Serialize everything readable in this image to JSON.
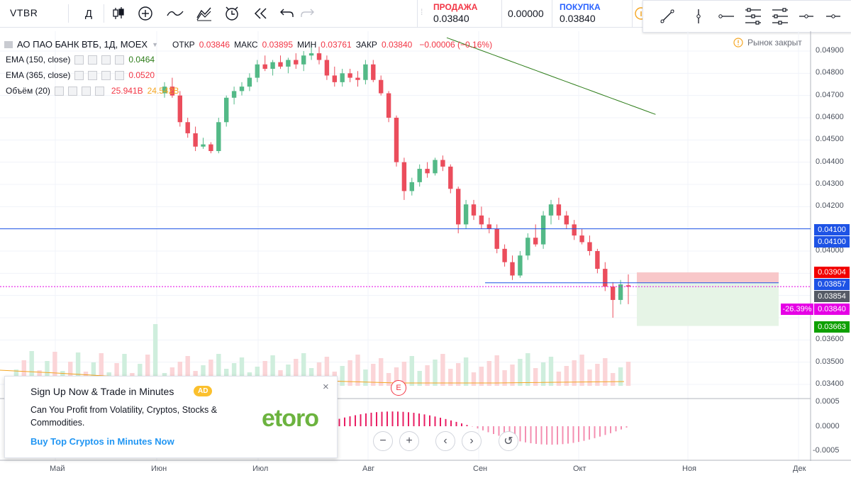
{
  "toolbar": {
    "symbol": "VTBR",
    "interval": "Д",
    "sell_label": "ПРОДАЖА",
    "sell_price": "0.03840",
    "spread": "0.00000",
    "buy_label": "ПОКУПКА",
    "buy_price": "0.03840"
  },
  "legend": {
    "title": "АО ПАО БАНК ВТБ, 1Д, MOEX",
    "open_label": "ОТКР",
    "open_value": "0.03846",
    "high_label": "МАКС",
    "high_value": "0.03895",
    "low_label": "МИН",
    "low_value": "0.03761",
    "close_label": "ЗАКР",
    "close_value": "0.03840",
    "change": "−0.00006 (−0.16%)",
    "ema150_label": "EMA (150, close)",
    "ema150_value": "0.0464",
    "ema365_label": "EMA (365, close)",
    "ema365_value": "0.0520",
    "volume_label": "Объём (20)",
    "volume_value": "25.941B",
    "volume_ma_value": "24.542B"
  },
  "status": {
    "market": "Рынок закрыт"
  },
  "price_axis": [
    "0.04900",
    "0.04800",
    "0.04700",
    "0.04600",
    "0.04500",
    "0.04400",
    "0.04300",
    "0.04200",
    "0.04000",
    "0.03600",
    "0.03500",
    "0.03400"
  ],
  "price_tags": [
    {
      "text": "0.04100",
      "color": "#1e53e5"
    },
    {
      "text": "0.04100",
      "color": "#1e53e5"
    },
    {
      "text": "0.03904",
      "color": "#f20000"
    },
    {
      "text": "0.03857",
      "color": "#1e53e5"
    },
    {
      "text": "0.03854",
      "color": "#555a66"
    },
    {
      "text": "0.03840",
      "color": "#e500e5"
    },
    {
      "text": "0.03663",
      "color": "#0ea000"
    }
  ],
  "pct_tag": "-26.39%",
  "macd_axis": [
    "0.0005",
    "0.0000",
    "-0.0005"
  ],
  "time_axis": [
    "Май",
    "Июн",
    "Июл",
    "Авг",
    "Сен",
    "Окт",
    "Ноя",
    "Дек"
  ],
  "ad": {
    "title": "Sign Up Now & Trade in Minutes",
    "badge": "AD",
    "body": "Can You Profit from Volatility, Cryptos, Stocks & Commodities.",
    "link": "Buy Top Cryptos in Minutes Now",
    "logo": "etoro",
    "close": "×"
  },
  "macd_label": "M",
  "zoom": {
    "minus": "−",
    "plus": "+",
    "left": "‹",
    "right": "›",
    "reset": "↺"
  },
  "colors": {
    "up": "#53b987",
    "down": "#eb4d5c",
    "ema150": "#2e7d1a",
    "line_blue": "#1e53e5",
    "short_red": "#f7b9bb",
    "short_green": "#e6f4e6"
  },
  "chart_data": {
    "type": "candlestick",
    "title": "АО ПАО БАНК ВТБ, 1Д, MOEX",
    "ylim": [
      0.034,
      0.0495
    ],
    "candles": [
      [
        0.0471,
        0.0476,
        0.0469,
        0.0474
      ],
      [
        0.0474,
        0.0478,
        0.0469,
        0.047
      ],
      [
        0.047,
        0.0472,
        0.0456,
        0.0458
      ],
      [
        0.0458,
        0.046,
        0.0451,
        0.0453
      ],
      [
        0.0453,
        0.0456,
        0.0445,
        0.0447
      ],
      [
        0.0447,
        0.0451,
        0.0446,
        0.0448
      ],
      [
        0.0448,
        0.0449,
        0.0444,
        0.0445
      ],
      [
        0.0445,
        0.046,
        0.0444,
        0.0458
      ],
      [
        0.0458,
        0.047,
        0.0456,
        0.0469
      ],
      [
        0.0469,
        0.0474,
        0.0466,
        0.0472
      ],
      [
        0.0472,
        0.0476,
        0.047,
        0.0474
      ],
      [
        0.0474,
        0.048,
        0.0472,
        0.0478
      ],
      [
        0.0478,
        0.0486,
        0.0476,
        0.0484
      ],
      [
        0.0484,
        0.0488,
        0.0481,
        0.0482
      ],
      [
        0.0482,
        0.0486,
        0.0479,
        0.0485
      ],
      [
        0.0485,
        0.0488,
        0.0482,
        0.0483
      ],
      [
        0.0483,
        0.0487,
        0.048,
        0.0486
      ],
      [
        0.0486,
        0.0489,
        0.0482,
        0.0484
      ],
      [
        0.0484,
        0.049,
        0.0481,
        0.0488
      ],
      [
        0.0488,
        0.0493,
        0.0486,
        0.0489
      ],
      [
        0.0489,
        0.0492,
        0.0484,
        0.0486
      ],
      [
        0.0486,
        0.0488,
        0.0477,
        0.0479
      ],
      [
        0.0479,
        0.0483,
        0.0474,
        0.0476
      ],
      [
        0.0476,
        0.0482,
        0.0474,
        0.048
      ],
      [
        0.048,
        0.0482,
        0.0476,
        0.0478
      ],
      [
        0.0478,
        0.0481,
        0.0474,
        0.0477
      ],
      [
        0.0477,
        0.0486,
        0.0475,
        0.0484
      ],
      [
        0.0484,
        0.0486,
        0.0476,
        0.0477
      ],
      [
        0.0477,
        0.0479,
        0.047,
        0.0471
      ],
      [
        0.0471,
        0.0472,
        0.0458,
        0.046
      ],
      [
        0.046,
        0.0461,
        0.0438,
        0.044
      ],
      [
        0.044,
        0.0442,
        0.0423,
        0.0427
      ],
      [
        0.0427,
        0.0433,
        0.0425,
        0.0431
      ],
      [
        0.0431,
        0.0439,
        0.0429,
        0.0437
      ],
      [
        0.0437,
        0.044,
        0.0433,
        0.0435
      ],
      [
        0.0435,
        0.0442,
        0.0434,
        0.0441
      ],
      [
        0.0441,
        0.0443,
        0.0436,
        0.0438
      ],
      [
        0.0438,
        0.0439,
        0.0426,
        0.0428
      ],
      [
        0.0428,
        0.0429,
        0.0408,
        0.0412
      ],
      [
        0.0412,
        0.0423,
        0.041,
        0.0421
      ],
      [
        0.0421,
        0.0423,
        0.0414,
        0.0416
      ],
      [
        0.0416,
        0.042,
        0.041,
        0.0412
      ],
      [
        0.0412,
        0.0415,
        0.0408,
        0.041
      ],
      [
        0.041,
        0.0412,
        0.0399,
        0.0401
      ],
      [
        0.0401,
        0.0403,
        0.0393,
        0.0395
      ],
      [
        0.0395,
        0.0398,
        0.0387,
        0.0389
      ],
      [
        0.0389,
        0.04,
        0.0388,
        0.0398
      ],
      [
        0.0398,
        0.0408,
        0.0396,
        0.0406
      ],
      [
        0.0406,
        0.0412,
        0.0402,
        0.0403
      ],
      [
        0.0403,
        0.0418,
        0.0401,
        0.0416
      ],
      [
        0.0416,
        0.0423,
        0.0412,
        0.0421
      ],
      [
        0.0421,
        0.0424,
        0.0414,
        0.0416
      ],
      [
        0.0416,
        0.0418,
        0.041,
        0.0412
      ],
      [
        0.0412,
        0.0414,
        0.0405,
        0.0407
      ],
      [
        0.0407,
        0.041,
        0.0403,
        0.0404
      ],
      [
        0.0404,
        0.0407,
        0.0398,
        0.04
      ],
      [
        0.04,
        0.0401,
        0.039,
        0.0392
      ],
      [
        0.0392,
        0.0395,
        0.0382,
        0.0384
      ],
      [
        0.0384,
        0.0386,
        0.037,
        0.0378
      ],
      [
        0.0378,
        0.0387,
        0.0376,
        0.0385
      ],
      [
        0.03846,
        0.03895,
        0.03761,
        0.0384
      ]
    ],
    "ema150": [
      0.0496,
      0.04945,
      0.0493,
      0.04915,
      0.049,
      0.04885,
      0.0487,
      0.04855,
      0.0484,
      0.04825,
      0.0481,
      0.04795,
      0.0478,
      0.04765,
      0.0475,
      0.04735,
      0.0472,
      0.04705,
      0.0469,
      0.04675,
      0.0466,
      0.04645,
      0.0463,
      0.04615
    ]
  }
}
